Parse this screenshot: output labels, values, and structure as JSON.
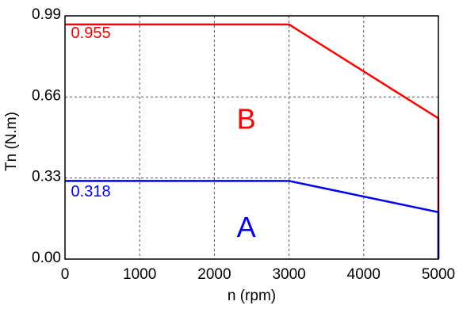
{
  "chart_data": {
    "type": "line",
    "xlabel": "n (rpm)",
    "ylabel": "Tn (N.m)",
    "xlim": [
      0,
      5000
    ],
    "ylim": [
      0,
      0.99
    ],
    "x_ticks": [
      0,
      1000,
      2000,
      3000,
      4000,
      5000
    ],
    "x_tick_labels": [
      "0",
      "1000",
      "2000",
      "3000",
      "4000",
      "5000"
    ],
    "y_ticks": [
      0,
      0.33,
      0.66,
      0.99
    ],
    "y_tick_labels": [
      "0.00",
      "0.33",
      "0.66",
      "0.99"
    ],
    "grid": true,
    "grid_style": "dashed",
    "series": [
      {
        "name": "B",
        "color": "#ff0000",
        "x": [
          0,
          3000,
          5000,
          5000
        ],
        "y": [
          0.955,
          0.955,
          0.573,
          0
        ]
      },
      {
        "name": "A",
        "color": "#0000ff",
        "x": [
          0,
          3000,
          5000,
          5000
        ],
        "y": [
          0.318,
          0.318,
          0.191,
          0
        ]
      }
    ],
    "annotations": [
      {
        "id": "b-value",
        "text": "0.955",
        "color": "#ff0000",
        "x": 80,
        "y": 0.9,
        "size": "small"
      },
      {
        "id": "b-label",
        "text": "B",
        "color": "#ff0000",
        "x": 2300,
        "y": 0.53,
        "size": "big"
      },
      {
        "id": "a-value",
        "text": "0.318",
        "color": "#0000ff",
        "x": 80,
        "y": 0.255,
        "size": "small"
      },
      {
        "id": "a-label",
        "text": "A",
        "color": "#0000ff",
        "x": 2300,
        "y": 0.09,
        "size": "big"
      }
    ]
  }
}
